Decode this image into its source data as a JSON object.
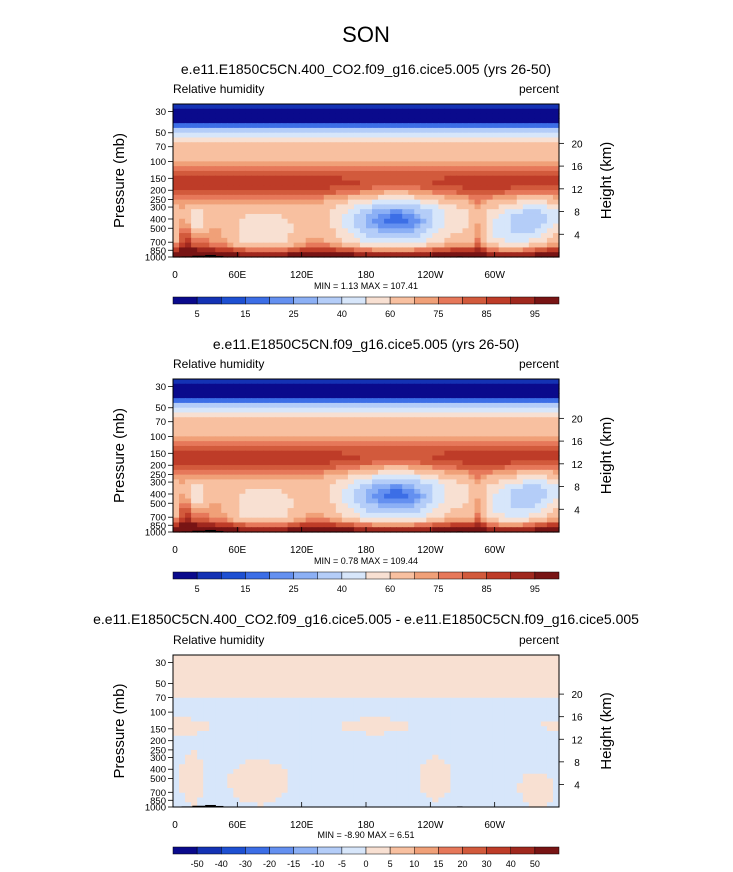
{
  "page_title": "SON",
  "colormap_rel": [
    "#0a0a8c",
    "#1432b4",
    "#1e50d2",
    "#3c6ee6",
    "#6490f0",
    "#8cb0f5",
    "#b4cdf8",
    "#d7e6fa",
    "#f8e0d2",
    "#f8c0a0",
    "#f0a078",
    "#e6785a",
    "#d25a3c",
    "#be3c28",
    "#a0281e",
    "#781414"
  ],
  "colormap_diff": [
    "#0a0a8c",
    "#1432b4",
    "#1e50d2",
    "#3c6ee6",
    "#6490f0",
    "#8cb0f5",
    "#b4cdf8",
    "#d7e6fa",
    "#f8e0d2",
    "#f8c0a0",
    "#f0a078",
    "#e6785a",
    "#d25a3c",
    "#be3c28",
    "#a0281e",
    "#781414"
  ],
  "chart_data": [
    {
      "type": "heatmap",
      "title": "e.e11.E1850C5CN.400_CO2.f09_g16.cice5.005 (yrs 26-50)",
      "left_string": "Relative humidity",
      "right_string": "percent",
      "ylabel": "Pressure (mb)",
      "ylabel_right": "Height (km)",
      "y_ticks": [
        "30",
        "50",
        "70",
        "100",
        "150",
        "200",
        "250",
        "300",
        "400",
        "500",
        "700",
        "850",
        "1000"
      ],
      "y_right_ticks": [
        "20",
        "16",
        "12",
        "8",
        "4"
      ],
      "x_ticks": [
        "0",
        "60E",
        "120E",
        "180",
        "120W",
        "60W"
      ],
      "min_max_text": "MIN =   1.13  MAX = 107.41",
      "colorbar_labels": [
        "5",
        "15",
        "25",
        "40",
        "60",
        "75",
        "85",
        "95"
      ],
      "min": 1.13,
      "max": 107.41
    },
    {
      "type": "heatmap",
      "title": "e.e11.E1850C5CN.f09_g16.cice5.005 (yrs 26-50)",
      "left_string": "Relative humidity",
      "right_string": "percent",
      "ylabel": "Pressure (mb)",
      "ylabel_right": "Height (km)",
      "y_ticks": [
        "30",
        "50",
        "70",
        "100",
        "150",
        "200",
        "250",
        "300",
        "400",
        "500",
        "700",
        "850",
        "1000"
      ],
      "y_right_ticks": [
        "20",
        "16",
        "12",
        "8",
        "4"
      ],
      "x_ticks": [
        "0",
        "60E",
        "120E",
        "180",
        "120W",
        "60W"
      ],
      "min_max_text": "MIN =   0.78  MAX = 109.44",
      "colorbar_labels": [
        "5",
        "15",
        "25",
        "40",
        "60",
        "75",
        "85",
        "95"
      ],
      "min": 0.78,
      "max": 109.44
    },
    {
      "type": "heatmap",
      "title": "e.e11.E1850C5CN.400_CO2.f09_g16.cice5.005 - e.e11.E1850C5CN.f09_g16.cice5.005",
      "left_string": "Relative humidity",
      "right_string": "percent",
      "ylabel": "Pressure (mb)",
      "ylabel_right": "Height (km)",
      "y_ticks": [
        "30",
        "50",
        "70",
        "100",
        "150",
        "200",
        "250",
        "300",
        "400",
        "500",
        "700",
        "850",
        "1000"
      ],
      "y_right_ticks": [
        "20",
        "16",
        "12",
        "8",
        "4"
      ],
      "x_ticks": [
        "0",
        "60E",
        "120E",
        "180",
        "120W",
        "60W"
      ],
      "min_max_text": "MIN =  -8.90  MAX =   6.51",
      "colorbar_labels": [
        "-50",
        "-40",
        "-30",
        "-20",
        "-15",
        "-10",
        "-5",
        "0",
        "5",
        "10",
        "15",
        "20",
        "30",
        "40",
        "50"
      ],
      "min": -8.9,
      "max": 6.51
    }
  ]
}
